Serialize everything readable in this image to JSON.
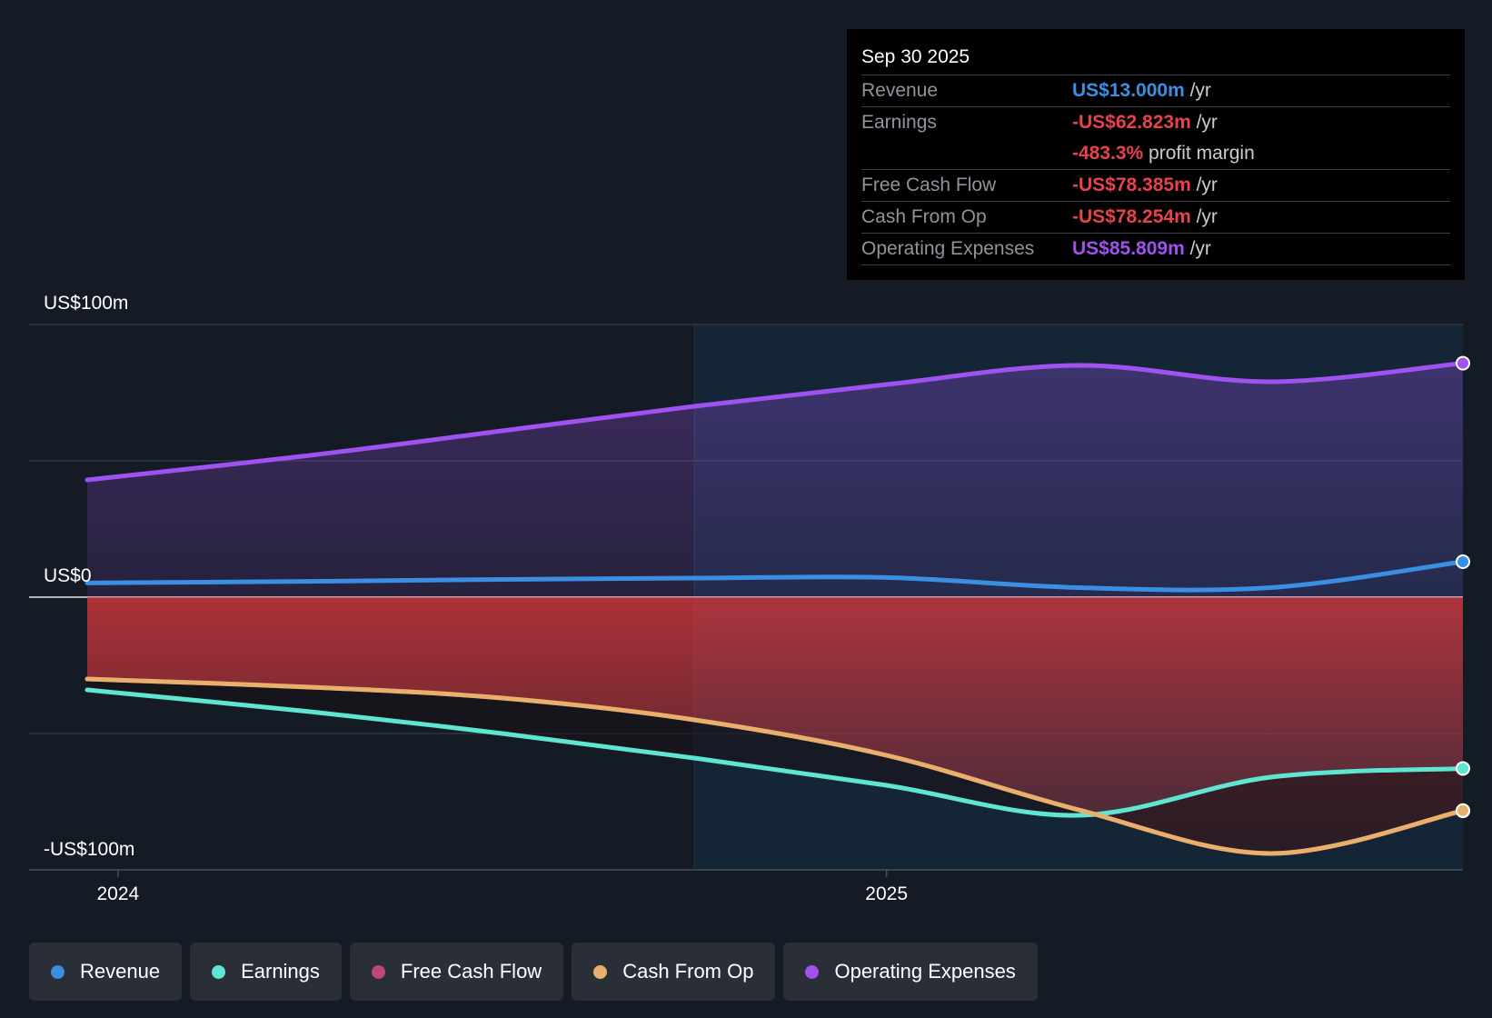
{
  "chart_data": {
    "type": "line",
    "title": "",
    "x_labels": [
      "2024",
      "2025"
    ],
    "y_labels": {
      "top": "US$100m",
      "zero": "US$0",
      "bottom": "-US$100m"
    },
    "ylim": [
      -100,
      100
    ],
    "xlim": [
      2023.96,
      2025.75
    ],
    "series": [
      {
        "name": "Revenue",
        "color": "#3b8fe3",
        "x": [
          2023.96,
          2024.25,
          2024.5,
          2024.75,
          2025.0,
          2025.25,
          2025.5,
          2025.75
        ],
        "y": [
          5.2,
          5.8,
          6.5,
          7.0,
          7.2,
          3.5,
          3.5,
          13.0
        ]
      },
      {
        "name": "Earnings",
        "color": "#5ee6d3",
        "x": [
          2023.96,
          2024.25,
          2024.5,
          2024.75,
          2025.0,
          2025.25,
          2025.5,
          2025.75
        ],
        "y": [
          -34,
          -42,
          -50,
          -59,
          -69,
          -80,
          -66,
          -62.823
        ]
      },
      {
        "name": "Free Cash Flow",
        "color": "#c0457a",
        "x": [
          2023.96,
          2024.25,
          2024.5,
          2024.75,
          2025.0,
          2025.25,
          2025.5,
          2025.75
        ],
        "y": [
          -30,
          -33,
          -37,
          -45,
          -58,
          -78,
          -94,
          -78.385
        ]
      },
      {
        "name": "Cash From Op",
        "color": "#e8b06a",
        "x": [
          2023.96,
          2024.25,
          2024.5,
          2024.75,
          2025.0,
          2025.25,
          2025.5,
          2025.75
        ],
        "y": [
          -30,
          -33,
          -37,
          -45,
          -58,
          -78,
          -94,
          -78.254
        ]
      },
      {
        "name": "Operating Expenses",
        "color": "#a052f0",
        "x": [
          2023.96,
          2024.25,
          2024.5,
          2024.75,
          2025.0,
          2025.25,
          2025.5,
          2025.75
        ],
        "y": [
          43,
          52,
          61,
          70,
          78,
          85,
          79,
          85.809
        ]
      }
    ],
    "past_region_end_x": 2024.75,
    "legend_position": "bottom"
  },
  "tooltip": {
    "date": "Sep 30 2025",
    "rows": [
      {
        "label": "Revenue",
        "value": "US$13.000m",
        "unit": " /yr",
        "color": "#3b8fe3"
      },
      {
        "label": "Earnings",
        "value": "-US$62.823m",
        "unit": " /yr",
        "color": "#e8434d"
      },
      {
        "label": "",
        "value": "-483.3%",
        "unit": " profit margin",
        "color": "#e8434d"
      },
      {
        "label": "Free Cash Flow",
        "value": "-US$78.385m",
        "unit": " /yr",
        "color": "#e8434d"
      },
      {
        "label": "Cash From Op",
        "value": "-US$78.254m",
        "unit": " /yr",
        "color": "#e8434d"
      },
      {
        "label": "Operating Expenses",
        "value": "US$85.809m",
        "unit": " /yr",
        "color": "#a052f0"
      }
    ]
  },
  "legend": [
    {
      "label": "Revenue",
      "color": "#3b8fe3"
    },
    {
      "label": "Earnings",
      "color": "#5ee6d3"
    },
    {
      "label": "Free Cash Flow",
      "color": "#c0457a"
    },
    {
      "label": "Cash From Op",
      "color": "#e8b06a"
    },
    {
      "label": "Operating Expenses",
      "color": "#a052f0"
    }
  ]
}
